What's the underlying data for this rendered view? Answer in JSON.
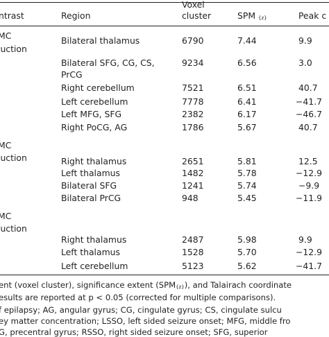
{
  "header": {
    "contrast": "ntrast",
    "region": "Region",
    "voxel_line1": "Voxel",
    "voxel_line2": "cluster",
    "spm": "SPM",
    "spm_sub": "{z}",
    "peak": "Peak c"
  },
  "groups": [
    {
      "label_line1": "MC",
      "label_line2": "luction",
      "rows": [
        {
          "region": "Bilateral thalamus",
          "voxel": "6790",
          "spm": "7.44",
          "peak": "9.9"
        },
        {
          "region_line1": "Bilateral SFG, CG, CS,",
          "region_line2": "PrCG",
          "voxel": "9234",
          "spm": "6.56",
          "peak": "3.0"
        },
        {
          "region": "Right cerebellum",
          "voxel": "7521",
          "spm": "6.51",
          "peak": "40.7"
        },
        {
          "region": "Left cerebellum",
          "voxel": "7778",
          "spm": "6.41",
          "peak": "−41.7"
        },
        {
          "region": "Left MFG, SFG",
          "voxel": "2382",
          "spm": "6.17",
          "peak": "−46.7"
        },
        {
          "region": "Right PoCG, AG",
          "voxel": "1786",
          "spm": "5.67",
          "peak": "40.7"
        }
      ]
    },
    {
      "label_line1": "MC",
      "label_line2": "luction",
      "rows": [
        {
          "region": "Right thalamus",
          "voxel": "2651",
          "spm": "5.81",
          "peak": "12.5"
        },
        {
          "region": "Left thalamus",
          "voxel": "1482",
          "spm": "5.78",
          "peak": "−12.9"
        },
        {
          "region": "Bilateral SFG",
          "voxel": "1241",
          "spm": "5.74",
          "peak": "−9.9"
        },
        {
          "region": "Bilateral PrCG",
          "voxel": "948",
          "spm": "5.45",
          "peak": "−11.9"
        }
      ]
    },
    {
      "label_line1": "MC",
      "label_line2": "luction",
      "rows": [
        {
          "region": "Right thalamus",
          "voxel": "2487",
          "spm": "5.98",
          "peak": "9.9"
        },
        {
          "region": "Left thalamus",
          "voxel": "1528",
          "spm": "5.70",
          "peak": "−12.9"
        },
        {
          "region": "Left cerebellum",
          "voxel": "5123",
          "spm": "5.62",
          "peak": "−41.7"
        }
      ]
    }
  ],
  "footnotes": {
    "line1_a": "ent (voxel cluster), significance extent (SPM",
    "line1_sub": "{z}",
    "line1_b": "), and Talairach coordinate",
    "line2": "esults are reported at p < 0.05 (corrected for multiple comparisons).",
    "line3": "f epilapsy; AG, angular gyrus; CG, cingulate gyrus; CS, cingulate sulcu",
    "line4": "ey matter concentration; LSSO, left sided seizure onset; MFG, middle fro",
    "line5": "G, precentral gyrus; RSSO, right sided seizure onset; SFG, superior"
  }
}
